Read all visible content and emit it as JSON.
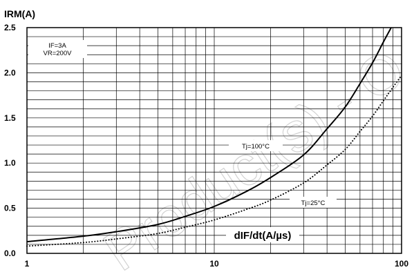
{
  "chart_data": {
    "type": "line",
    "title": "",
    "ylabel": "IRM(A)",
    "xlabel": "dIF/dt(A/µs)",
    "x_scale": "log",
    "xlim": [
      1,
      100
    ],
    "ylim": [
      0,
      2.5
    ],
    "x_ticks": [
      "1",
      "10",
      "100"
    ],
    "y_ticks": [
      "0.0",
      "0.5",
      "1.0",
      "1.5",
      "2.0",
      "2.5"
    ],
    "y_tick_values": [
      0,
      0.5,
      1.0,
      1.5,
      2.0,
      2.5
    ],
    "grid": true,
    "conditions": [
      "IF=3A",
      "VR=200V"
    ],
    "series": [
      {
        "name": "Tj=100°C",
        "style": "solid",
        "x": [
          1,
          2,
          3,
          5,
          7,
          10,
          15,
          20,
          30,
          40,
          50,
          60,
          70,
          80,
          88
        ],
        "y": [
          0.13,
          0.19,
          0.24,
          0.32,
          0.41,
          0.52,
          0.69,
          0.84,
          1.09,
          1.38,
          1.62,
          1.88,
          2.11,
          2.34,
          2.5
        ]
      },
      {
        "name": "Tj=25°C",
        "style": "dotted",
        "x": [
          1,
          2,
          3,
          5,
          7,
          10,
          15,
          20,
          30,
          40,
          50,
          60,
          70,
          80,
          90,
          100
        ],
        "y": [
          0.08,
          0.12,
          0.16,
          0.22,
          0.29,
          0.37,
          0.49,
          0.59,
          0.78,
          0.98,
          1.15,
          1.35,
          1.52,
          1.69,
          1.84,
          1.97
        ]
      }
    ],
    "annotations": [
      {
        "text": "Tj=100°C",
        "series": 0
      },
      {
        "text": "Tj=25°C",
        "series": 1
      }
    ]
  },
  "watermark_text": "Product(s) - O"
}
